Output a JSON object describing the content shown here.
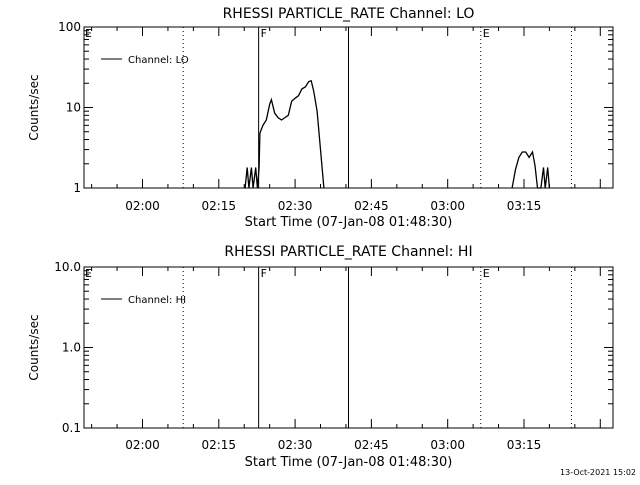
{
  "footer": {
    "timestamp": "13-Oct-2021 15:02"
  },
  "chart_data": [
    {
      "type": "line",
      "title": "RHESSI PARTICLE_RATE Channel: LO",
      "xlabel": "Start Time (07-Jan-08 01:48:30)",
      "ylabel": "Counts/sec",
      "yscale": "log",
      "ylim": [
        1,
        100
      ],
      "yticks": [
        "1",
        "10",
        "100"
      ],
      "xlim": [
        "01:48:30",
        "03:32:30"
      ],
      "xticks": [
        "02:00",
        "02:15",
        "02:30",
        "02:45",
        "03:00",
        "03:15"
      ],
      "legend_position": "top-left",
      "series": [
        {
          "name": "Channel: LO",
          "color": "#000000",
          "segments": [
            [
              [
                "02:20:10",
                1.0
              ],
              [
                "02:20:35",
                1.8
              ],
              [
                "02:20:55",
                1.0
              ],
              [
                "02:21:25",
                1.8
              ],
              [
                "02:21:45",
                1.0
              ],
              [
                "02:22:15",
                1.8
              ],
              [
                "02:22:35",
                1.0
              ],
              [
                "02:22:55",
                1.8
              ],
              [
                "02:23:05",
                4.8
              ],
              [
                "02:23:40",
                6.0
              ],
              [
                "02:24:20",
                7.0
              ],
              [
                "02:25:00",
                11.0
              ],
              [
                "02:25:20",
                12.5
              ],
              [
                "02:26:00",
                8.5
              ],
              [
                "02:26:40",
                7.5
              ],
              [
                "02:27:20",
                7.0
              ],
              [
                "02:28:00",
                7.5
              ],
              [
                "02:28:40",
                8.0
              ],
              [
                "02:29:20",
                12.0
              ],
              [
                "02:30:00",
                13.0
              ],
              [
                "02:30:40",
                14.0
              ],
              [
                "02:31:20",
                17.0
              ],
              [
                "02:32:00",
                18.0
              ],
              [
                "02:32:40",
                21.0
              ],
              [
                "02:33:10",
                21.5
              ],
              [
                "02:33:40",
                16.0
              ],
              [
                "02:34:20",
                9.0
              ],
              [
                "02:35:00",
                3.0
              ],
              [
                "02:35:40",
                1.0
              ]
            ],
            [
              [
                "03:12:40",
                1.0
              ],
              [
                "03:13:20",
                1.7
              ],
              [
                "03:14:00",
                2.4
              ],
              [
                "03:14:40",
                2.8
              ],
              [
                "03:15:20",
                2.8
              ],
              [
                "03:16:00",
                2.4
              ],
              [
                "03:16:40",
                2.8
              ],
              [
                "03:17:10",
                1.9
              ],
              [
                "03:17:40",
                1.0
              ],
              [
                "03:18:20",
                1.0
              ],
              [
                "03:18:50",
                1.8
              ],
              [
                "03:19:10",
                1.0
              ],
              [
                "03:19:40",
                1.8
              ],
              [
                "03:20:00",
                1.0
              ]
            ]
          ]
        }
      ],
      "vertical_lines": [
        {
          "time": "02:08:00",
          "style": "dotted",
          "label": ""
        },
        {
          "time": "02:22:50",
          "style": "solid",
          "label": "F"
        },
        {
          "time": "02:40:30",
          "style": "solid",
          "label": ""
        },
        {
          "time": "03:06:30",
          "style": "dotted",
          "label": "E"
        },
        {
          "time": "03:24:20",
          "style": "dotted",
          "label": ""
        }
      ],
      "edge_labels": [
        "E"
      ]
    },
    {
      "type": "line",
      "title": "RHESSI PARTICLE_RATE Channel: HI",
      "xlabel": "Start Time (07-Jan-08 01:48:30)",
      "ylabel": "Counts/sec",
      "yscale": "log",
      "ylim": [
        0.1,
        10
      ],
      "yticks": [
        "0.1",
        "1.0",
        "10.0"
      ],
      "xlim": [
        "01:48:30",
        "03:32:30"
      ],
      "xticks": [
        "02:00",
        "02:15",
        "02:30",
        "02:45",
        "03:00",
        "03:15"
      ],
      "legend_position": "top-left",
      "series": [
        {
          "name": "Channel: HI",
          "color": "#000000",
          "segments": []
        }
      ],
      "vertical_lines": [
        {
          "time": "02:08:00",
          "style": "dotted",
          "label": ""
        },
        {
          "time": "02:22:50",
          "style": "solid",
          "label": "F"
        },
        {
          "time": "02:40:30",
          "style": "solid",
          "label": ""
        },
        {
          "time": "03:06:30",
          "style": "dotted",
          "label": "E"
        },
        {
          "time": "03:24:20",
          "style": "dotted",
          "label": ""
        }
      ],
      "edge_labels": [
        "E"
      ]
    }
  ]
}
